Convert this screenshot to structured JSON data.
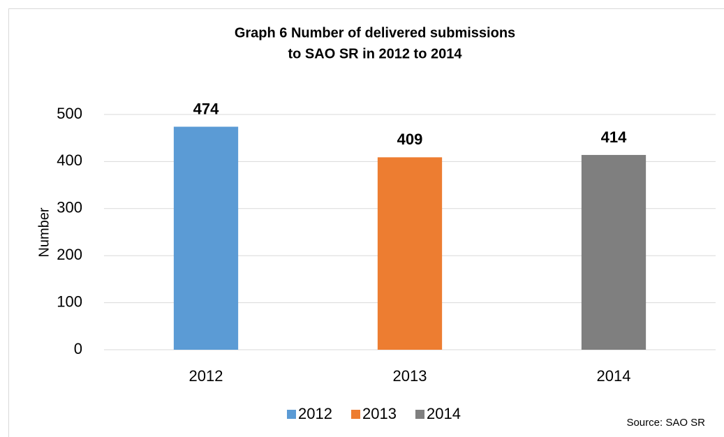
{
  "chart_data": {
    "type": "bar",
    "title": [
      "Graph 6 Number of delivered submissions",
      "to SAO SR in 2012 to 2014"
    ],
    "ylabel": "Number",
    "categories": [
      "2012",
      "2013",
      "2014"
    ],
    "values": [
      474,
      409,
      414
    ],
    "colors": [
      "#5b9bd5",
      "#ed7d31",
      "#7f7f7f"
    ],
    "ylim": [
      0,
      500
    ],
    "yticks": [
      0,
      100,
      200,
      300,
      400,
      500
    ],
    "grid": true,
    "legend": "bottom",
    "source": "Source: SAO SR"
  }
}
